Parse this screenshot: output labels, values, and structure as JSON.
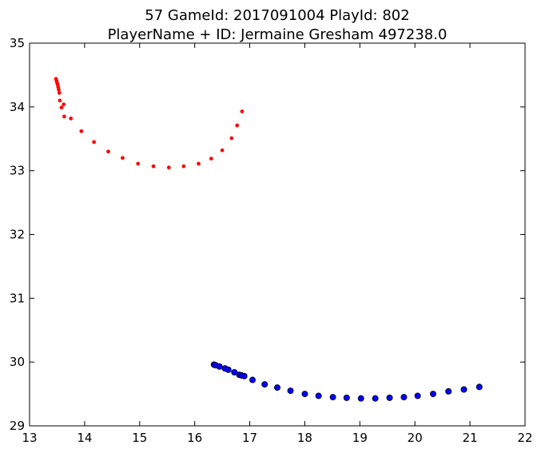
{
  "chart_data": {
    "type": "scatter",
    "title_line1": "57 GameId: 2017091004 PlayId: 802",
    "title_line2": "PlayerName + ID: Jermaine Gresham 497238.0",
    "xlabel": "",
    "ylabel": "",
    "xlim": [
      13,
      22
    ],
    "ylim": [
      29,
      35
    ],
    "xticks": [
      13,
      14,
      15,
      16,
      17,
      18,
      19,
      20,
      21,
      22
    ],
    "yticks": [
      29,
      30,
      31,
      32,
      33,
      34,
      35
    ],
    "grid": false,
    "series": [
      {
        "color": "#ff0000",
        "marker": "small-dot",
        "points": [
          [
            13.48,
            34.44
          ],
          [
            13.49,
            34.41
          ],
          [
            13.5,
            34.38
          ],
          [
            13.51,
            34.35
          ],
          [
            13.52,
            34.31
          ],
          [
            13.53,
            34.27
          ],
          [
            13.54,
            34.22
          ],
          [
            13.55,
            34.1
          ],
          [
            13.58,
            33.99
          ],
          [
            13.62,
            34.04
          ],
          [
            13.63,
            33.85
          ],
          [
            13.75,
            33.82
          ],
          [
            13.94,
            33.62
          ],
          [
            14.17,
            33.45
          ],
          [
            14.43,
            33.3
          ],
          [
            14.69,
            33.2
          ],
          [
            14.97,
            33.11
          ],
          [
            15.25,
            33.07
          ],
          [
            15.53,
            33.05
          ],
          [
            15.8,
            33.07
          ],
          [
            16.07,
            33.11
          ],
          [
            16.3,
            33.19
          ],
          [
            16.5,
            33.32
          ],
          [
            16.67,
            33.51
          ],
          [
            16.77,
            33.71
          ],
          [
            16.86,
            33.93
          ]
        ]
      },
      {
        "color": "#0000ff",
        "marker": "circle",
        "points": [
          [
            16.35,
            29.96
          ],
          [
            16.38,
            29.95
          ],
          [
            16.45,
            29.93
          ],
          [
            16.55,
            29.9
          ],
          [
            16.61,
            29.88
          ],
          [
            16.72,
            29.84
          ],
          [
            16.81,
            29.8
          ],
          [
            16.85,
            29.79
          ],
          [
            16.9,
            29.78
          ],
          [
            17.05,
            29.72
          ],
          [
            17.27,
            29.65
          ],
          [
            17.5,
            29.6
          ],
          [
            17.74,
            29.55
          ],
          [
            18.0,
            29.5
          ],
          [
            18.25,
            29.47
          ],
          [
            18.51,
            29.45
          ],
          [
            18.76,
            29.44
          ],
          [
            19.02,
            29.43
          ],
          [
            19.28,
            29.43
          ],
          [
            19.54,
            29.44
          ],
          [
            19.8,
            29.45
          ],
          [
            20.05,
            29.47
          ],
          [
            20.33,
            29.5
          ],
          [
            20.61,
            29.54
          ],
          [
            20.89,
            29.57
          ],
          [
            21.17,
            29.61
          ]
        ]
      }
    ]
  }
}
